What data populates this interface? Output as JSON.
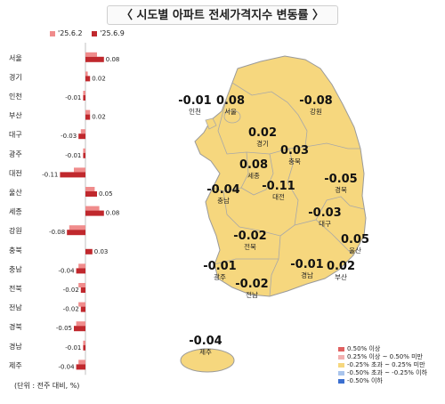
{
  "title": "〈 시도별 아파트 전세가격지수 변동률 〉",
  "unit_note": "(단위 : 전주 대비, %)",
  "colors": {
    "prev_bar": "#f08c8c",
    "curr_bar": "#c0282d",
    "map_fill": "#f6d77e",
    "map_border": "#9a9a9a",
    "axis": "#999999"
  },
  "chart_data": {
    "type": "bar",
    "orientation": "horizontal",
    "categories": [
      "서울",
      "경기",
      "인천",
      "부산",
      "대구",
      "광주",
      "대전",
      "울산",
      "세종",
      "강원",
      "충북",
      "충남",
      "전북",
      "전남",
      "경북",
      "경남",
      "제주"
    ],
    "series": [
      {
        "name": "'25.6.2",
        "values": [
          0.05,
          0.01,
          -0.01,
          0.02,
          -0.02,
          -0.01,
          -0.05,
          0.04,
          0.06,
          -0.07,
          0.0,
          -0.03,
          -0.03,
          -0.03,
          -0.04,
          -0.01,
          -0.03
        ]
      },
      {
        "name": "'25.6.9",
        "values": [
          0.08,
          0.02,
          -0.01,
          0.02,
          -0.03,
          -0.01,
          -0.11,
          0.05,
          0.08,
          -0.08,
          0.03,
          -0.04,
          -0.02,
          -0.02,
          -0.05,
          -0.01,
          -0.04
        ]
      }
    ],
    "value_labels": [
      "0.08",
      "0.02",
      "-0.01",
      "0.02",
      "-0.03",
      "-0.01",
      "-0.11",
      "0.05",
      "0.08",
      "-0.08",
      "0.03",
      "-0.04",
      "-0.02",
      "-0.02",
      "-0.05",
      "-0.01",
      "-0.04"
    ],
    "legend": [
      "'25.6.2",
      "'25.6.9"
    ],
    "legend_position": "top"
  },
  "map": {
    "regions": [
      {
        "name": "인천",
        "value": "-0.01"
      },
      {
        "name": "서울",
        "value": "0.08"
      },
      {
        "name": "경기",
        "value": "0.02"
      },
      {
        "name": "강원",
        "value": "-0.08"
      },
      {
        "name": "충북",
        "value": "0.03"
      },
      {
        "name": "세종",
        "value": "0.08"
      },
      {
        "name": "충남",
        "value": "-0.04"
      },
      {
        "name": "대전",
        "value": "-0.11"
      },
      {
        "name": "경북",
        "value": "-0.05"
      },
      {
        "name": "대구",
        "value": "-0.03"
      },
      {
        "name": "전북",
        "value": "-0.02"
      },
      {
        "name": "울산",
        "value": "0.05"
      },
      {
        "name": "광주",
        "value": "-0.01"
      },
      {
        "name": "경남",
        "value": "-0.01"
      },
      {
        "name": "부산",
        "value": "0.02"
      },
      {
        "name": "전남",
        "value": "-0.02"
      },
      {
        "name": "제주",
        "value": "-0.04"
      }
    ],
    "legend": [
      {
        "label": "0.50% 이상",
        "color": "#e06060"
      },
      {
        "label": "0.25% 이상 ~ 0.50% 미만",
        "color": "#f2b0b0"
      },
      {
        "label": "-0.25% 초과 ~ 0.25% 미만",
        "color": "#f6d77e"
      },
      {
        "label": "-0.50% 초과 ~ -0.25% 이하",
        "color": "#a9c4ec"
      },
      {
        "label": "-0.50% 이하",
        "color": "#3b6fd0"
      }
    ]
  }
}
